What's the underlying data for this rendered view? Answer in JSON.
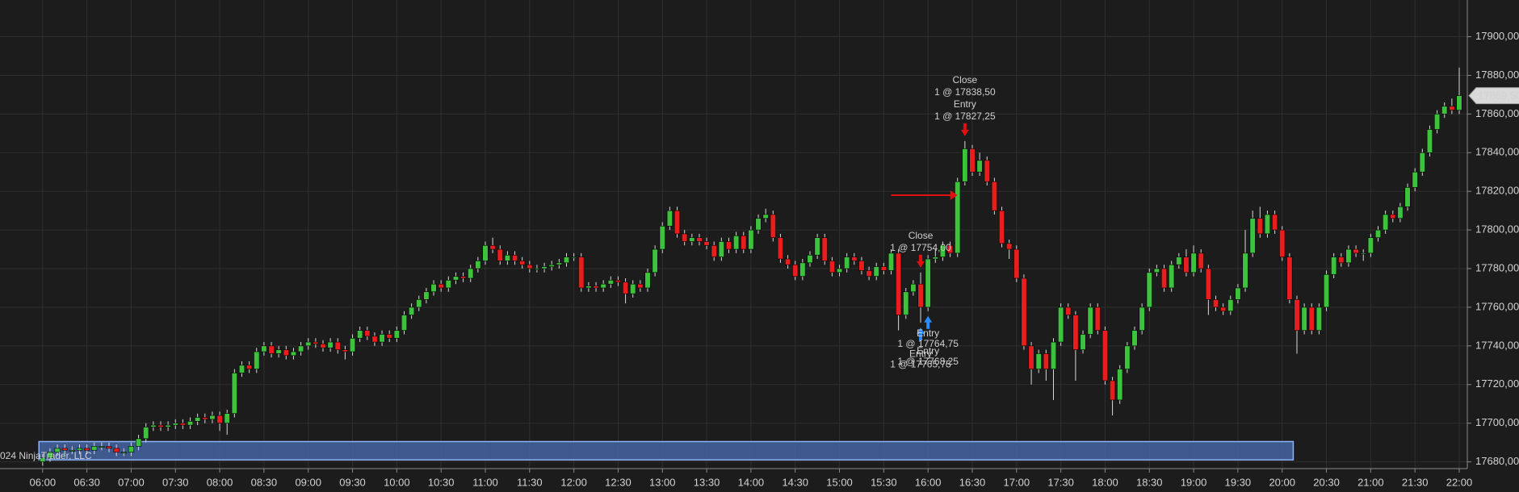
{
  "chart_data": {
    "type": "candlestick",
    "ylim": [
      17676.5,
      17919
    ],
    "yticks": [
      {
        "value": 17680,
        "label": "17680,00"
      },
      {
        "value": 17700,
        "label": "17700,00"
      },
      {
        "value": 17720,
        "label": "17720,00"
      },
      {
        "value": 17740,
        "label": "17740,00"
      },
      {
        "value": 17760,
        "label": "17760,00"
      },
      {
        "value": 17780,
        "label": "17780,00"
      },
      {
        "value": 17800,
        "label": "17800,00"
      },
      {
        "value": 17820,
        "label": "17820,00"
      },
      {
        "value": 17840,
        "label": "17840,00"
      },
      {
        "value": 17860,
        "label": "17860,00"
      },
      {
        "value": 17880,
        "label": "17880,00"
      },
      {
        "value": 17900,
        "label": "17900,00"
      }
    ],
    "xlim": [
      0,
      192
    ],
    "xticks": [
      {
        "value": 0,
        "label": "06:00"
      },
      {
        "value": 6,
        "label": "06:30"
      },
      {
        "value": 12,
        "label": "07:00"
      },
      {
        "value": 18,
        "label": "07:30"
      },
      {
        "value": 24,
        "label": "08:00"
      },
      {
        "value": 30,
        "label": "08:30"
      },
      {
        "value": 36,
        "label": "09:00"
      },
      {
        "value": 42,
        "label": "09:30"
      },
      {
        "value": 48,
        "label": "10:00"
      },
      {
        "value": 54,
        "label": "10:30"
      },
      {
        "value": 60,
        "label": "11:00"
      },
      {
        "value": 66,
        "label": "11:30"
      },
      {
        "value": 72,
        "label": "12:00"
      },
      {
        "value": 78,
        "label": "12:30"
      },
      {
        "value": 84,
        "label": "13:00"
      },
      {
        "value": 90,
        "label": "13:30"
      },
      {
        "value": 96,
        "label": "14:00"
      },
      {
        "value": 102,
        "label": "14:30"
      },
      {
        "value": 108,
        "label": "15:00"
      },
      {
        "value": 114,
        "label": "15:30"
      },
      {
        "value": 120,
        "label": "16:00"
      },
      {
        "value": 126,
        "label": "16:30"
      },
      {
        "value": 132,
        "label": "17:00"
      },
      {
        "value": 138,
        "label": "17:30"
      },
      {
        "value": 144,
        "label": "18:00"
      },
      {
        "value": 150,
        "label": "18:30"
      },
      {
        "value": 156,
        "label": "19:00"
      },
      {
        "value": 162,
        "label": "19:30"
      },
      {
        "value": 168,
        "label": "20:00"
      },
      {
        "value": 174,
        "label": "20:30"
      },
      {
        "value": 180,
        "label": "21:00"
      },
      {
        "value": 186,
        "label": "21:30"
      },
      {
        "value": 192,
        "label": "22:00"
      }
    ],
    "grid": true,
    "up_color": "#3cc23c",
    "down_color": "#e81e1e",
    "wick_color": "#d8d8d8",
    "candles": [
      [
        17680,
        17684,
        17678,
        17682
      ],
      [
        17682,
        17687,
        17680,
        17685
      ],
      [
        17685,
        17689,
        17683,
        17687
      ],
      [
        17687,
        17689,
        17684,
        17686
      ],
      [
        17686,
        17688,
        17684,
        17686
      ],
      [
        17686,
        17689,
        17684,
        17687
      ],
      [
        17687,
        17689,
        17684,
        17686
      ],
      [
        17686,
        17690,
        17684,
        17688
      ],
      [
        17688,
        17690,
        17686,
        17688
      ],
      [
        17688,
        17690,
        17685,
        17687
      ],
      [
        17687,
        17689,
        17683,
        17685
      ],
      [
        17685,
        17687,
        17683,
        17685
      ],
      [
        17685,
        17690,
        17683,
        17688
      ],
      [
        17688,
        17694,
        17686,
        17692
      ],
      [
        17692,
        17700,
        17690,
        17698
      ],
      [
        17698,
        17701,
        17696,
        17699
      ],
      [
        17699,
        17701,
        17696,
        17698
      ],
      [
        17698,
        17701,
        17696,
        17699
      ],
      [
        17699,
        17702,
        17697,
        17700
      ],
      [
        17700,
        17702,
        17697,
        17699
      ],
      [
        17699,
        17703,
        17697,
        17701
      ],
      [
        17701,
        17705,
        17699,
        17703
      ],
      [
        17703,
        17705,
        17700,
        17702
      ],
      [
        17702,
        17706,
        17700,
        17704
      ],
      [
        17704,
        17706,
        17696,
        17700
      ],
      [
        17700,
        17707,
        17694,
        17705
      ],
      [
        17705,
        17728,
        17703,
        17726
      ],
      [
        17726,
        17732,
        17724,
        17730
      ],
      [
        17730,
        17732,
        17726,
        17728
      ],
      [
        17728,
        17739,
        17726,
        17737
      ],
      [
        17737,
        17742,
        17735,
        17740
      ],
      [
        17740,
        17742,
        17734,
        17736
      ],
      [
        17736,
        17740,
        17734,
        17738
      ],
      [
        17738,
        17740,
        17733,
        17735
      ],
      [
        17735,
        17739,
        17733,
        17737
      ],
      [
        17737,
        17742,
        17735,
        17740
      ],
      [
        17740,
        17744,
        17738,
        17742
      ],
      [
        17742,
        17744,
        17739,
        17741
      ],
      [
        17741,
        17743,
        17737,
        17739
      ],
      [
        17739,
        17744,
        17737,
        17742
      ],
      [
        17742,
        17744,
        17736,
        17738
      ],
      [
        17738,
        17740,
        17733,
        17737
      ],
      [
        17737,
        17746,
        17735,
        17744
      ],
      [
        17744,
        17750,
        17742,
        17748
      ],
      [
        17748,
        17750,
        17743,
        17745
      ],
      [
        17745,
        17747,
        17740,
        17742
      ],
      [
        17742,
        17748,
        17740,
        17746
      ],
      [
        17746,
        17748,
        17742,
        17744
      ],
      [
        17744,
        17750,
        17742,
        17748
      ],
      [
        17748,
        17758,
        17746,
        17756
      ],
      [
        17756,
        17762,
        17754,
        17760
      ],
      [
        17760,
        17766,
        17758,
        17764
      ],
      [
        17764,
        17770,
        17762,
        17768
      ],
      [
        17768,
        17774,
        17766,
        17772
      ],
      [
        17772,
        17774,
        17768,
        17770
      ],
      [
        17770,
        17776,
        17768,
        17774
      ],
      [
        17774,
        17778,
        17772,
        17776
      ],
      [
        17776,
        17778,
        17773,
        17775
      ],
      [
        17775,
        17782,
        17773,
        17780
      ],
      [
        17780,
        17786,
        17778,
        17784
      ],
      [
        17784,
        17794,
        17782,
        17792
      ],
      [
        17792,
        17796,
        17788,
        17790
      ],
      [
        17790,
        17792,
        17782,
        17784
      ],
      [
        17784,
        17789,
        17782,
        17787
      ],
      [
        17787,
        17789,
        17782,
        17784
      ],
      [
        17784,
        17786,
        17780,
        17782
      ],
      [
        17782,
        17784,
        17778,
        17780
      ],
      [
        17780,
        17782,
        17778,
        17780
      ],
      [
        17780,
        17783,
        17778,
        17781
      ],
      [
        17781,
        17784,
        17779,
        17782
      ],
      [
        17782,
        17785,
        17780,
        17783
      ],
      [
        17783,
        17788,
        17781,
        17786
      ],
      [
        17786,
        17788,
        17784,
        17786
      ],
      [
        17786,
        17788,
        17768,
        17770
      ],
      [
        17770,
        17773,
        17768,
        17771
      ],
      [
        17771,
        17773,
        17768,
        17770
      ],
      [
        17770,
        17774,
        17768,
        17772
      ],
      [
        17772,
        17776,
        17770,
        17774
      ],
      [
        17774,
        17776,
        17771,
        17773
      ],
      [
        17773,
        17775,
        17762,
        17767
      ],
      [
        17767,
        17774,
        17765,
        17772
      ],
      [
        17772,
        17774,
        17768,
        17770
      ],
      [
        17770,
        17780,
        17768,
        17778
      ],
      [
        17778,
        17792,
        17776,
        17790
      ],
      [
        17790,
        17804,
        17788,
        17802
      ],
      [
        17802,
        17812,
        17800,
        17810
      ],
      [
        17810,
        17812,
        17796,
        17798
      ],
      [
        17798,
        17800,
        17792,
        17794
      ],
      [
        17794,
        17798,
        17792,
        17796
      ],
      [
        17796,
        17798,
        17792,
        17794
      ],
      [
        17794,
        17796,
        17790,
        17792
      ],
      [
        17792,
        17794,
        17784,
        17786
      ],
      [
        17786,
        17796,
        17784,
        17794
      ],
      [
        17794,
        17796,
        17788,
        17790
      ],
      [
        17790,
        17799,
        17788,
        17797
      ],
      [
        17797,
        17799,
        17788,
        17790
      ],
      [
        17790,
        17802,
        17788,
        17800
      ],
      [
        17800,
        17808,
        17798,
        17806
      ],
      [
        17806,
        17811,
        17804,
        17808
      ],
      [
        17808,
        17810,
        17794,
        17796
      ],
      [
        17796,
        17798,
        17783,
        17785
      ],
      [
        17785,
        17787,
        17780,
        17782
      ],
      [
        17782,
        17784,
        17774,
        17776
      ],
      [
        17776,
        17785,
        17774,
        17783
      ],
      [
        17783,
        17789,
        17781,
        17787
      ],
      [
        17787,
        17798,
        17785,
        17796
      ],
      [
        17796,
        17798,
        17782,
        17784
      ],
      [
        17784,
        17786,
        17776,
        17778
      ],
      [
        17778,
        17782,
        17776,
        17780
      ],
      [
        17780,
        17788,
        17778,
        17786
      ],
      [
        17786,
        17788,
        17782,
        17784
      ],
      [
        17784,
        17786,
        17777,
        17779
      ],
      [
        17779,
        17781,
        17774,
        17776
      ],
      [
        17776,
        17783,
        17774,
        17781
      ],
      [
        17781,
        17783,
        17777,
        17779
      ],
      [
        17779,
        17790,
        17777,
        17788
      ],
      [
        17788,
        17790,
        17748,
        17756
      ],
      [
        17756,
        17770,
        17754,
        17768
      ],
      [
        17768,
        17774,
        17766,
        17772
      ],
      [
        17772,
        17778,
        17752,
        17760
      ],
      [
        17760,
        17787,
        17758,
        17785
      ],
      [
        17785,
        17790,
        17783,
        17786
      ],
      [
        17786,
        17794,
        17784,
        17792
      ],
      [
        17792,
        17794,
        17786,
        17788
      ],
      [
        17788,
        17827,
        17786,
        17825
      ],
      [
        17825,
        17846,
        17823,
        17842
      ],
      [
        17842,
        17844,
        17828,
        17830
      ],
      [
        17830,
        17840,
        17828,
        17836
      ],
      [
        17836,
        17838,
        17823,
        17825
      ],
      [
        17825,
        17827,
        17808,
        17810
      ],
      [
        17810,
        17812,
        17791,
        17793
      ],
      [
        17793,
        17795,
        17785,
        17790
      ],
      [
        17790,
        17792,
        17773,
        17775
      ],
      [
        17775,
        17777,
        17738,
        17740
      ],
      [
        17740,
        17742,
        17720,
        17728
      ],
      [
        17728,
        17738,
        17726,
        17736
      ],
      [
        17736,
        17738,
        17722,
        17728
      ],
      [
        17728,
        17744,
        17712,
        17742
      ],
      [
        17742,
        17762,
        17740,
        17760
      ],
      [
        17760,
        17762,
        17754,
        17756
      ],
      [
        17756,
        17758,
        17722,
        17738
      ],
      [
        17738,
        17748,
        17736,
        17746
      ],
      [
        17746,
        17762,
        17744,
        17760
      ],
      [
        17760,
        17762,
        17746,
        17748
      ],
      [
        17748,
        17750,
        17720,
        17722
      ],
      [
        17722,
        17724,
        17704,
        17712
      ],
      [
        17712,
        17730,
        17710,
        17728
      ],
      [
        17728,
        17742,
        17726,
        17740
      ],
      [
        17740,
        17750,
        17738,
        17748
      ],
      [
        17748,
        17762,
        17746,
        17760
      ],
      [
        17760,
        17780,
        17758,
        17778
      ],
      [
        17778,
        17782,
        17776,
        17780
      ],
      [
        17780,
        17782,
        17768,
        17770
      ],
      [
        17770,
        17784,
        17768,
        17782
      ],
      [
        17782,
        17788,
        17780,
        17786
      ],
      [
        17786,
        17790,
        17776,
        17778
      ],
      [
        17778,
        17792,
        17776,
        17788
      ],
      [
        17788,
        17790,
        17778,
        17780
      ],
      [
        17780,
        17782,
        17756,
        17764
      ],
      [
        17764,
        17766,
        17758,
        17760
      ],
      [
        17760,
        17762,
        17756,
        17758
      ],
      [
        17758,
        17766,
        17756,
        17764
      ],
      [
        17764,
        17772,
        17762,
        17770
      ],
      [
        17770,
        17800,
        17768,
        17788
      ],
      [
        17788,
        17810,
        17786,
        17806
      ],
      [
        17806,
        17812,
        17796,
        17798
      ],
      [
        17798,
        17810,
        17796,
        17808
      ],
      [
        17808,
        17810,
        17798,
        17800
      ],
      [
        17800,
        17802,
        17784,
        17786
      ],
      [
        17786,
        17788,
        17762,
        17764
      ],
      [
        17764,
        17766,
        17736,
        17748
      ],
      [
        17748,
        17762,
        17746,
        17760
      ],
      [
        17760,
        17762,
        17746,
        17748
      ],
      [
        17748,
        17762,
        17746,
        17760
      ],
      [
        17760,
        17779,
        17758,
        17777
      ],
      [
        17777,
        17788,
        17775,
        17786
      ],
      [
        17786,
        17788,
        17781,
        17783
      ],
      [
        17783,
        17792,
        17781,
        17790
      ],
      [
        17790,
        17792,
        17786,
        17788
      ],
      [
        17788,
        17790,
        17784,
        17788
      ],
      [
        17788,
        17798,
        17786,
        17796
      ],
      [
        17796,
        17802,
        17794,
        17800
      ],
      [
        17800,
        17810,
        17798,
        17808
      ],
      [
        17808,
        17810,
        17804,
        17806
      ],
      [
        17806,
        17814,
        17804,
        17812
      ],
      [
        17812,
        17824,
        17810,
        17822
      ],
      [
        17822,
        17832,
        17820,
        17830
      ],
      [
        17830,
        17842,
        17828,
        17840
      ],
      [
        17840,
        17854,
        17838,
        17852
      ],
      [
        17852,
        17862,
        17850,
        17860
      ],
      [
        17860,
        17866,
        17858,
        17864
      ],
      [
        17864,
        17868,
        17860,
        17862
      ],
      [
        17862,
        17884,
        17860,
        17869.5
      ]
    ],
    "last_price": {
      "value": 17869.5,
      "label": "17869,50"
    },
    "zone": {
      "from": 0,
      "to": 169,
      "low": 17681,
      "high": 17690.5,
      "fill": "#4a6eb4",
      "stroke": "#8db4ff"
    },
    "stop_line": {
      "from": 115,
      "to": 124,
      "price": 17818,
      "color": "#e01010"
    },
    "markers": [
      {
        "index": 125,
        "direction": "down",
        "color": "#e01010"
      },
      {
        "index": 119,
        "direction": "down",
        "color": "#e01010"
      },
      {
        "index": 119,
        "direction": "up",
        "color": "#2a8cff"
      },
      {
        "index": 120,
        "direction": "up",
        "color": "#2a8cff"
      }
    ],
    "trade_labels": [
      {
        "index": 125,
        "side": "above",
        "lines": [
          "Close",
          "1 @ 17838,50",
          "Entry",
          "1 @ 17827,25"
        ]
      },
      {
        "index": 119,
        "side": "above",
        "lines": [
          "Close",
          "1 @ 17754,00"
        ]
      },
      {
        "index": 120,
        "side": "below",
        "lines": [
          "Entry",
          "1 @ 17764,75"
        ]
      },
      {
        "index": 119,
        "side": "below",
        "lines": [
          "Entry",
          "1 @ 17765,75"
        ]
      },
      {
        "index": 120,
        "side": "below",
        "lines": [
          "Entry",
          "1 @ 17768,25"
        ]
      }
    ],
    "copyright": "024 NinjaTrader, LLC"
  }
}
